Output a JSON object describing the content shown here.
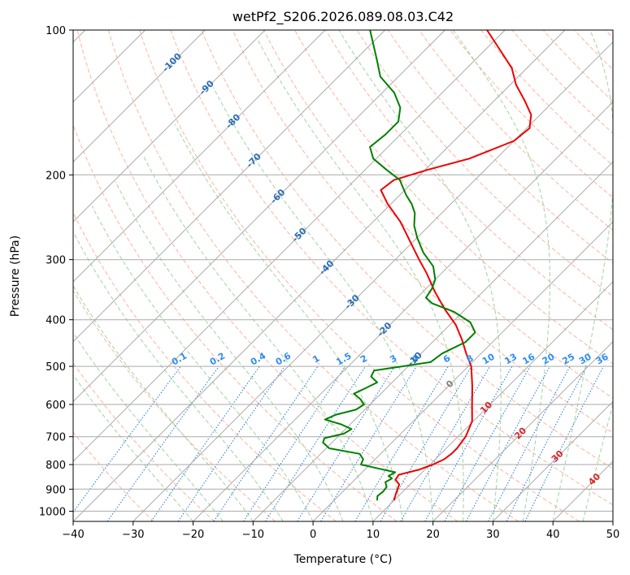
{
  "chart_data": {
    "type": "line",
    "title": "wetPf2_S206.2026.089.08.03.C42",
    "xlabel": "Temperature (°C)",
    "ylabel": "Pressure (hPa)",
    "xlim": [
      -40,
      50
    ],
    "ylim": [
      1050,
      100
    ],
    "y_scale": "log",
    "grid": true,
    "x_ticks": [
      "−40",
      "−30",
      "−20",
      "−10",
      "0",
      "10",
      "20",
      "30",
      "40",
      "50"
    ],
    "x_tick_values": [
      -40,
      -30,
      -20,
      -10,
      0,
      10,
      20,
      30,
      40,
      50
    ],
    "y_ticks": [
      "100",
      "200",
      "300",
      "400",
      "500",
      "600",
      "700",
      "800",
      "900",
      "1000"
    ],
    "y_tick_values": [
      100,
      200,
      300,
      400,
      500,
      600,
      700,
      800,
      900,
      1000
    ],
    "skew": 45,
    "colors": {
      "temperature": "#ee0000",
      "dewpoint": "#008000",
      "isotherm": "#aaaaaa",
      "dry_adiabat": "#f9b59e",
      "moist_adiabat": "#9fd49f",
      "mixing_ratio": "#1f77d4",
      "isotherm_label": "#2a6db3",
      "mixing_ratio_label": "#2e8ef0",
      "wet_bulb_label": "#d62728",
      "zero_label": "#808080"
    },
    "series": [
      {
        "role": "temperature",
        "points": [
          {
            "p": 950,
            "t": 10.0
          },
          {
            "p": 920,
            "t": 9.2
          },
          {
            "p": 880,
            "t": 8.2
          },
          {
            "p": 860,
            "t": 6.8
          },
          {
            "p": 840,
            "t": 6.5
          },
          {
            "p": 820,
            "t": 9.0
          },
          {
            "p": 800,
            "t": 10.5
          },
          {
            "p": 780,
            "t": 11.5
          },
          {
            "p": 760,
            "t": 11.8
          },
          {
            "p": 740,
            "t": 11.8
          },
          {
            "p": 700,
            "t": 11.3
          },
          {
            "p": 650,
            "t": 9.8
          },
          {
            "p": 600,
            "t": 7.0
          },
          {
            "p": 550,
            "t": 4.0
          },
          {
            "p": 500,
            "t": 0.5
          },
          {
            "p": 470,
            "t": -2.5
          },
          {
            "p": 440,
            "t": -5.5
          },
          {
            "p": 410,
            "t": -9.0
          },
          {
            "p": 380,
            "t": -13.5
          },
          {
            "p": 350,
            "t": -18.0
          },
          {
            "p": 320,
            "t": -22.5
          },
          {
            "p": 300,
            "t": -26.0
          },
          {
            "p": 270,
            "t": -31.5
          },
          {
            "p": 250,
            "t": -35.5
          },
          {
            "p": 230,
            "t": -40.5
          },
          {
            "p": 215,
            "t": -44.0
          },
          {
            "p": 205,
            "t": -43.5
          },
          {
            "p": 195,
            "t": -39.5
          },
          {
            "p": 185,
            "t": -34.5
          },
          {
            "p": 170,
            "t": -30.0
          },
          {
            "p": 160,
            "t": -29.5
          },
          {
            "p": 150,
            "t": -31.5
          },
          {
            "p": 140,
            "t": -35.0
          },
          {
            "p": 130,
            "t": -39.0
          },
          {
            "p": 120,
            "t": -42.5
          },
          {
            "p": 110,
            "t": -47.5
          },
          {
            "p": 100,
            "t": -53.0
          }
        ]
      },
      {
        "role": "dewpoint",
        "points": [
          {
            "p": 950,
            "t": 7.2
          },
          {
            "p": 930,
            "t": 6.5
          },
          {
            "p": 910,
            "t": 6.7
          },
          {
            "p": 890,
            "t": 6.5
          },
          {
            "p": 870,
            "t": 5.5
          },
          {
            "p": 855,
            "t": 6.0
          },
          {
            "p": 845,
            "t": 5.0
          },
          {
            "p": 830,
            "t": 5.5
          },
          {
            "p": 815,
            "t": 2.0
          },
          {
            "p": 800,
            "t": -1.5
          },
          {
            "p": 780,
            "t": -2.0
          },
          {
            "p": 760,
            "t": -3.5
          },
          {
            "p": 740,
            "t": -9.5
          },
          {
            "p": 720,
            "t": -11.5
          },
          {
            "p": 705,
            "t": -12.0
          },
          {
            "p": 690,
            "t": -9.5
          },
          {
            "p": 675,
            "t": -9.0
          },
          {
            "p": 660,
            "t": -11.5
          },
          {
            "p": 645,
            "t": -15.0
          },
          {
            "p": 630,
            "t": -14.0
          },
          {
            "p": 615,
            "t": -11.5
          },
          {
            "p": 600,
            "t": -11.0
          },
          {
            "p": 585,
            "t": -12.5
          },
          {
            "p": 570,
            "t": -14.5
          },
          {
            "p": 555,
            "t": -13.5
          },
          {
            "p": 540,
            "t": -12.5
          },
          {
            "p": 525,
            "t": -14.5
          },
          {
            "p": 510,
            "t": -15.0
          },
          {
            "p": 500,
            "t": -11.0
          },
          {
            "p": 490,
            "t": -7.0
          },
          {
            "p": 470,
            "t": -6.5
          },
          {
            "p": 445,
            "t": -4.5
          },
          {
            "p": 425,
            "t": -4.5
          },
          {
            "p": 405,
            "t": -7.0
          },
          {
            "p": 385,
            "t": -11.5
          },
          {
            "p": 370,
            "t": -16.5
          },
          {
            "p": 360,
            "t": -18.5
          },
          {
            "p": 345,
            "t": -19.0
          },
          {
            "p": 330,
            "t": -20.0
          },
          {
            "p": 310,
            "t": -22.5
          },
          {
            "p": 290,
            "t": -26.5
          },
          {
            "p": 270,
            "t": -30.0
          },
          {
            "p": 255,
            "t": -32.5
          },
          {
            "p": 240,
            "t": -34.5
          },
          {
            "p": 230,
            "t": -36.5
          },
          {
            "p": 220,
            "t": -39.0
          },
          {
            "p": 205,
            "t": -42.5
          },
          {
            "p": 195,
            "t": -46.5
          },
          {
            "p": 185,
            "t": -50.5
          },
          {
            "p": 175,
            "t": -53.0
          },
          {
            "p": 165,
            "t": -52.5
          },
          {
            "p": 155,
            "t": -52.5
          },
          {
            "p": 145,
            "t": -54.5
          },
          {
            "p": 135,
            "t": -58.0
          },
          {
            "p": 125,
            "t": -63.0
          },
          {
            "p": 115,
            "t": -66.5
          },
          {
            "p": 100,
            "t": -72.5
          }
        ]
      }
    ],
    "isotherm_labels": [
      {
        "text": "-100",
        "t": -100,
        "p": 117
      },
      {
        "text": "-90",
        "t": -90,
        "p": 132
      },
      {
        "text": "-80",
        "t": -80,
        "p": 155
      },
      {
        "text": "-70",
        "t": -70,
        "p": 187
      },
      {
        "text": "-60",
        "t": -60,
        "p": 222
      },
      {
        "text": "-50",
        "t": -50,
        "p": 267
      },
      {
        "text": "-40",
        "t": -40,
        "p": 312
      },
      {
        "text": "-30",
        "t": -30,
        "p": 368
      },
      {
        "text": "-20",
        "t": -20,
        "p": 420
      },
      {
        "text": "-10",
        "t": -10,
        "p": 484
      }
    ],
    "mixing_ratio_labels": [
      "0.1",
      "0.2",
      "0.4",
      "0.6",
      "1",
      "1.5",
      "2",
      "3",
      "4",
      "6",
      "8",
      "10",
      "13",
      "16",
      "20",
      "25",
      "30",
      "36"
    ],
    "mixing_ratio_values": [
      0.1,
      0.2,
      0.4,
      0.6,
      1,
      1.5,
      2,
      3,
      4,
      6,
      8,
      10,
      13,
      16,
      20,
      25,
      30,
      36
    ],
    "mixing_ratio_label_pressure": 500,
    "wet_bulb_labels": [
      {
        "text": "0",
        "t": 0,
        "p": 545
      },
      {
        "text": "10",
        "t": 10,
        "p": 610
      },
      {
        "text": "20",
        "t": 20,
        "p": 690
      },
      {
        "text": "30",
        "t": 30,
        "p": 770
      },
      {
        "text": "40",
        "t": 40,
        "p": 860
      }
    ]
  }
}
